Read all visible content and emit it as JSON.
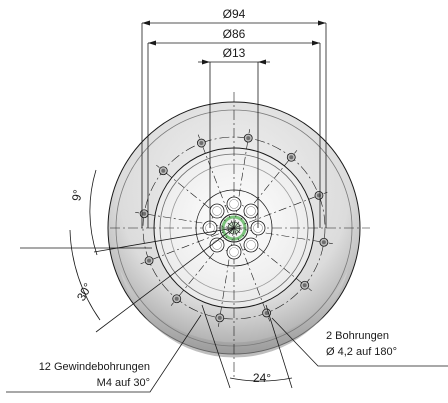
{
  "dimensions": {
    "diameter_94": "Ø94",
    "diameter_86": "Ø86",
    "diameter_13": "Ø13",
    "angle_9": "9°",
    "angle_30": "30°",
    "angle_24": "24°"
  },
  "notes": {
    "threaded_holes_line1": "12 Gewindebohrungen",
    "threaded_holes_line2": "M4 auf 30°",
    "bores_line1": "2 Bohrungen",
    "bores_line2": "Ø 4,2 auf 180°"
  },
  "colors": {
    "line": "#1a1a1a",
    "body_light": "#e6e6e6",
    "body_mid": "#c8c8c8",
    "body_dark": "#9a9a9a",
    "bore_accent": "#7dc47d"
  }
}
